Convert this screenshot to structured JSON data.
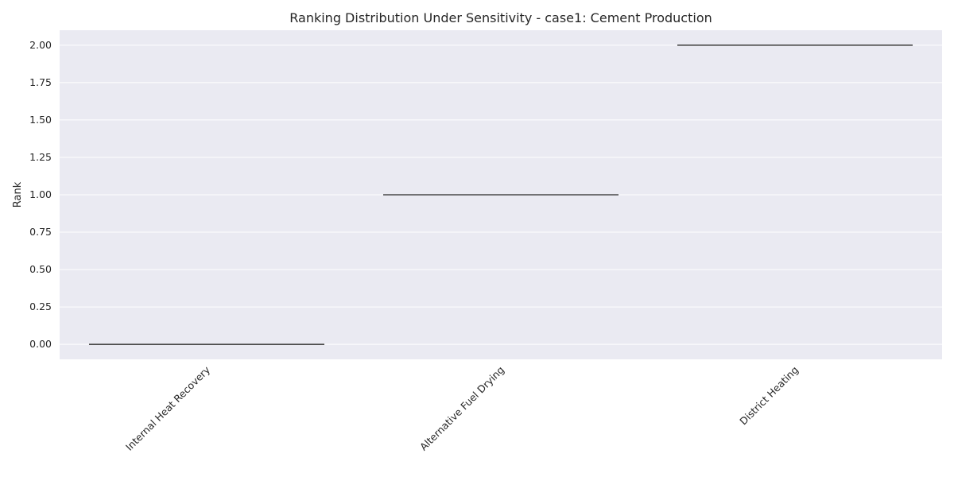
{
  "chart_data": {
    "type": "box",
    "title": "Ranking Distribution Under Sensitivity - case1: Cement Production",
    "xlabel": "",
    "ylabel": "Rank",
    "categories": [
      "Internal Heat Recovery",
      "Alternative Fuel Drying",
      "District Heating"
    ],
    "values": [
      0,
      1,
      2
    ],
    "ylim": [
      -0.1,
      2.1
    ],
    "yticks": [
      0.0,
      0.25,
      0.5,
      0.75,
      1.0,
      1.25,
      1.5,
      1.75,
      2.0
    ],
    "ytick_labels": [
      "0.00",
      "0.25",
      "0.50",
      "0.75",
      "1.00",
      "1.25",
      "1.50",
      "1.75",
      "2.00"
    ],
    "grid": true,
    "x_tick_rotation": 45,
    "colors": {
      "background": "#eaeaf2",
      "grid": "#ffffff",
      "median_line": "#4a4a4a",
      "text": "#262626"
    }
  }
}
